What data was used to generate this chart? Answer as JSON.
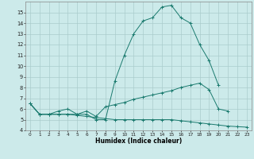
{
  "xlabel": "Humidex (Indice chaleur)",
  "background_color": "#cceaea",
  "grid_color": "#aacccc",
  "line_color": "#1a7a6e",
  "xlim": [
    -0.5,
    23.5
  ],
  "ylim": [
    4,
    16
  ],
  "yticks": [
    4,
    5,
    6,
    7,
    8,
    9,
    10,
    11,
    12,
    13,
    14,
    15
  ],
  "xticks": [
    0,
    1,
    2,
    3,
    4,
    5,
    6,
    7,
    8,
    9,
    10,
    11,
    12,
    13,
    14,
    15,
    16,
    17,
    18,
    19,
    20,
    21,
    22,
    23
  ],
  "line1_x": [
    0,
    1,
    2,
    3,
    4,
    5,
    6,
    7,
    8,
    9,
    10,
    11,
    12,
    13,
    14,
    15,
    16,
    17,
    18,
    19,
    20
  ],
  "line1_y": [
    6.5,
    5.5,
    5.5,
    5.5,
    5.5,
    5.5,
    5.5,
    5.0,
    5.0,
    8.6,
    11.0,
    13.0,
    14.2,
    14.5,
    15.5,
    15.65,
    14.5,
    14.0,
    12.0,
    10.5,
    8.2
  ],
  "line2_x": [
    0,
    1,
    2,
    3,
    4,
    5,
    6,
    7,
    8,
    9,
    10,
    11,
    12,
    13,
    14,
    15,
    16,
    17,
    18,
    19,
    20,
    21
  ],
  "line2_y": [
    6.5,
    5.5,
    5.5,
    5.8,
    6.0,
    5.5,
    5.8,
    5.3,
    6.2,
    6.4,
    6.6,
    6.9,
    7.1,
    7.3,
    7.5,
    7.7,
    8.0,
    8.2,
    8.4,
    7.8,
    6.0,
    5.8
  ],
  "line3_x": [
    0,
    1,
    2,
    3,
    4,
    5,
    6,
    7,
    8,
    9,
    10,
    11,
    12,
    13,
    14,
    15,
    16,
    17,
    18,
    19,
    20,
    21,
    22,
    23
  ],
  "line3_y": [
    6.5,
    5.5,
    5.5,
    5.5,
    5.5,
    5.4,
    5.3,
    5.2,
    5.1,
    5.0,
    5.0,
    5.0,
    5.0,
    5.0,
    5.0,
    5.0,
    4.9,
    4.8,
    4.7,
    4.6,
    4.5,
    4.4,
    4.35,
    4.3
  ]
}
